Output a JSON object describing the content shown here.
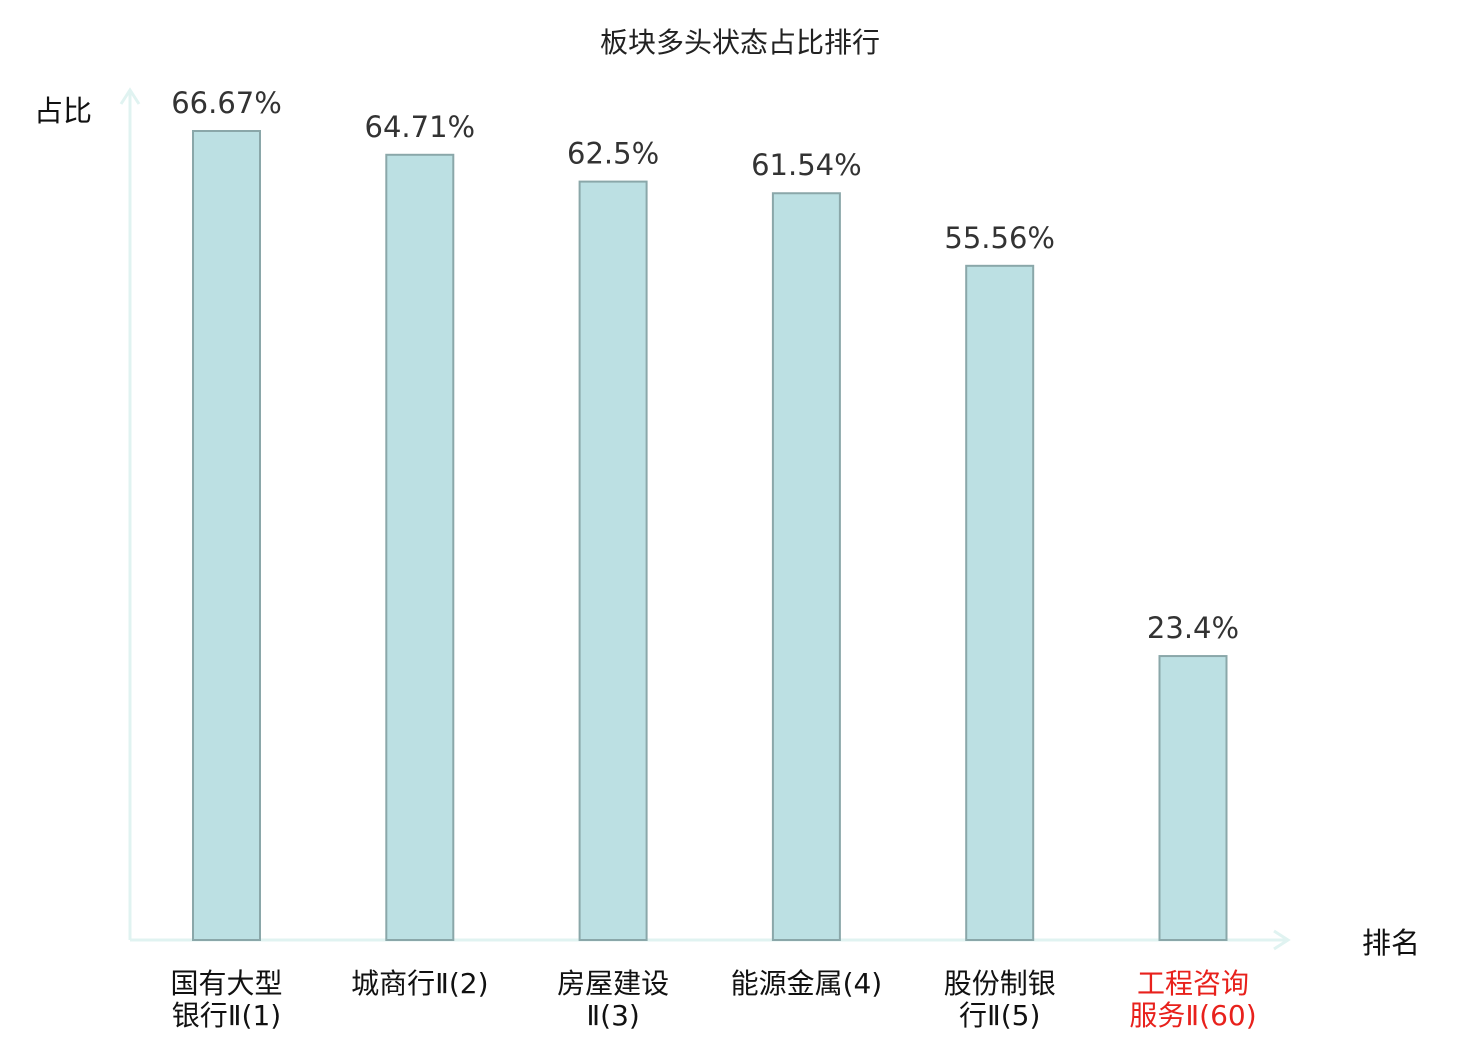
{
  "chart_data": {
    "type": "bar",
    "title": "板块多头状态占比排行",
    "ylabel": "占比",
    "xlabel": "排名",
    "ylim": [
      0,
      70
    ],
    "grid": false,
    "legend": "none",
    "categories": [
      [
        "国有大型",
        "银行Ⅱ(1)"
      ],
      [
        "城商行Ⅱ(2)"
      ],
      [
        "房屋建设",
        "Ⅱ(3)"
      ],
      [
        "能源金属(4)"
      ],
      [
        "股份制银",
        "行Ⅱ(5)"
      ],
      [
        "工程咨询",
        "服务Ⅱ(60)"
      ]
    ],
    "values": [
      66.67,
      64.71,
      62.5,
      61.54,
      55.56,
      23.4
    ],
    "value_labels": [
      "66.67%",
      "64.71%",
      "62.5%",
      "61.54%",
      "55.56%",
      "23.4%"
    ],
    "highlight_index": 5
  },
  "colors": {
    "bar_fill": "#bce0e3",
    "bar_stroke": "#8aa7a9",
    "axis": "#e0f3f1",
    "label_text": "#333333",
    "title_text": "#222222",
    "highlight_text": "#e8211c"
  }
}
